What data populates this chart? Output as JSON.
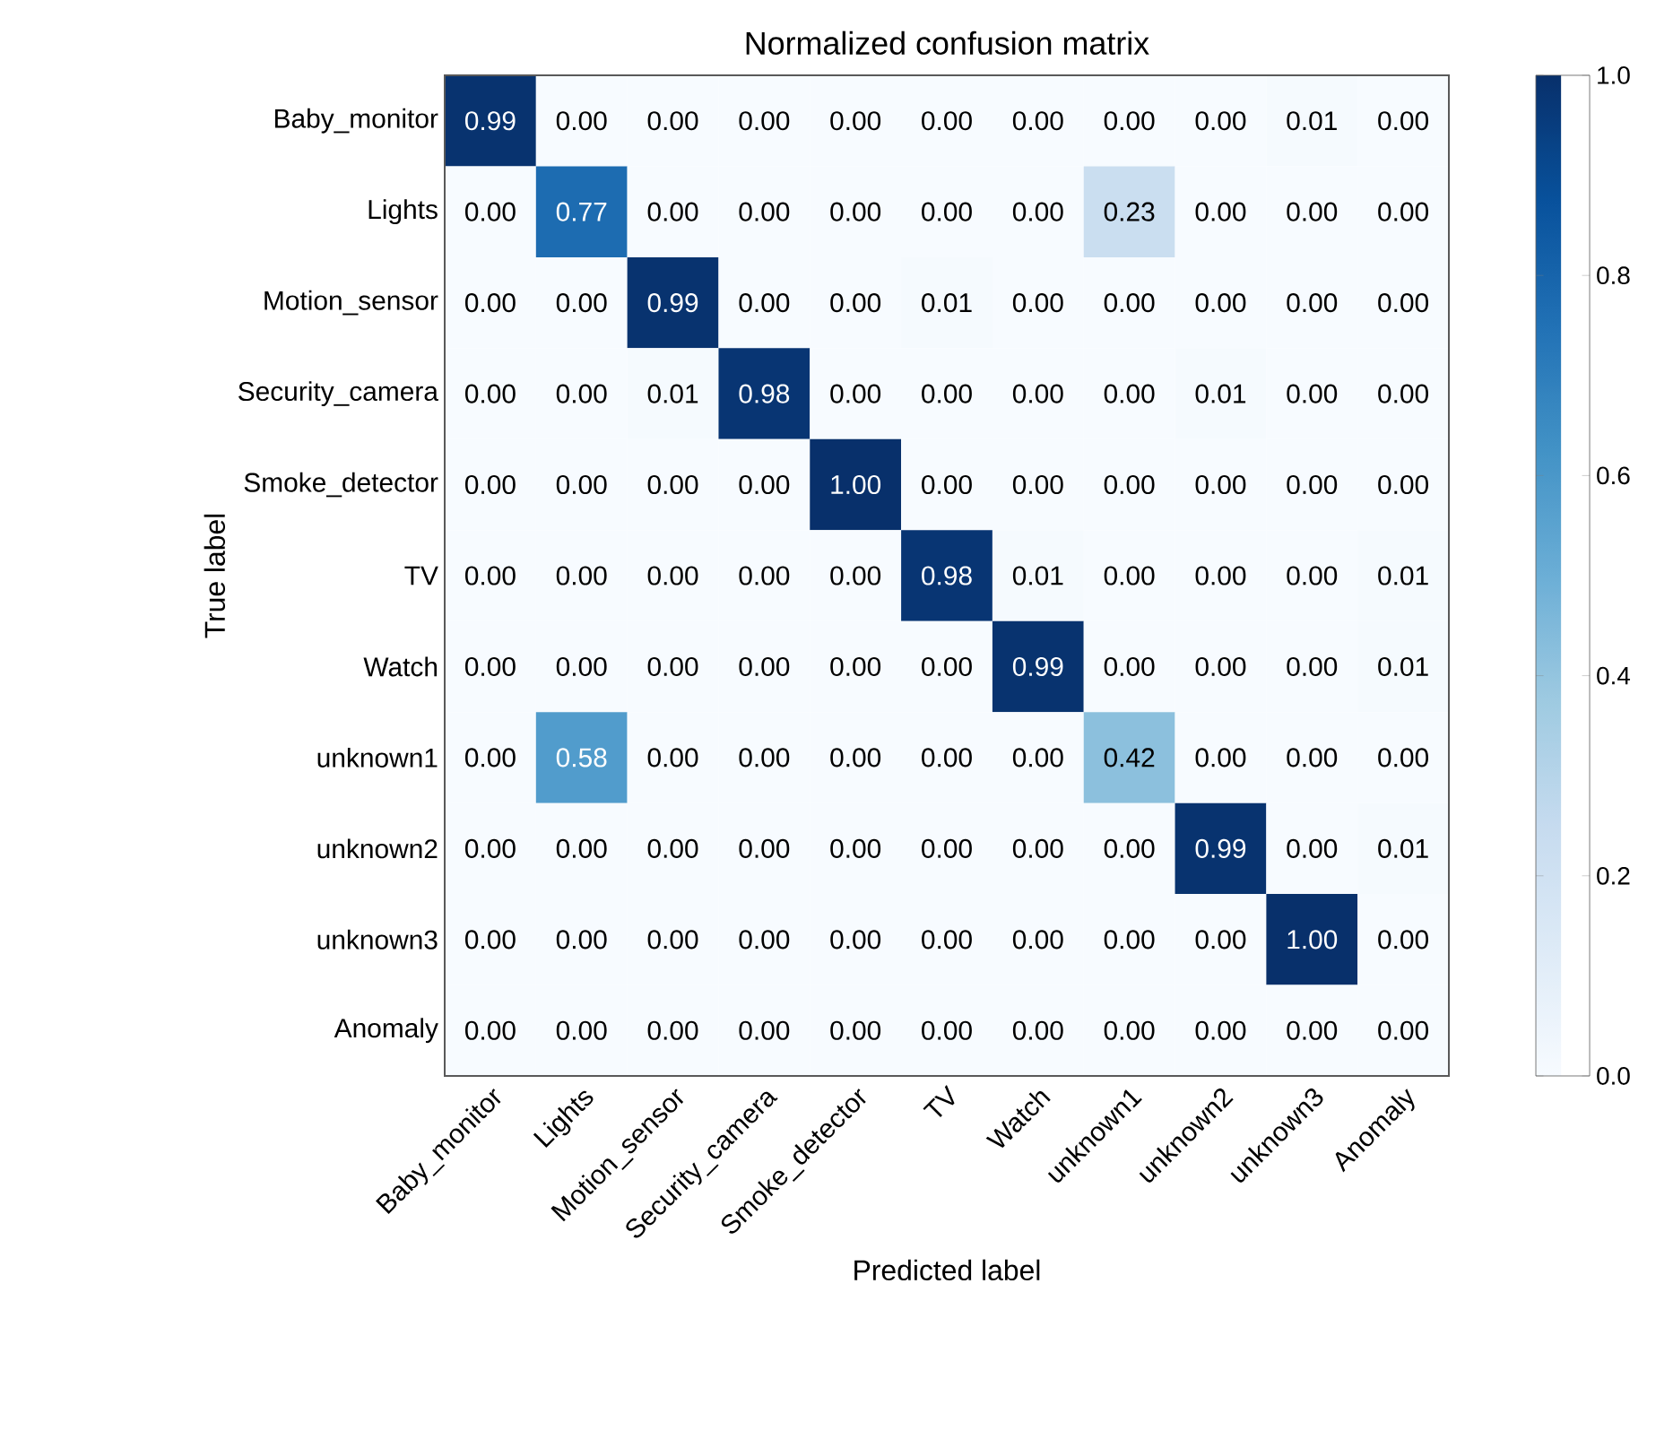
{
  "chart_data": {
    "type": "heatmap",
    "title": "Normalized confusion matrix",
    "xlabel": "Predicted label",
    "ylabel": "True label",
    "categories": [
      "Baby_monitor",
      "Lights",
      "Motion_sensor",
      "Security_camera",
      "Smoke_detector",
      "TV",
      "Watch",
      "unknown1",
      "unknown2",
      "unknown3",
      "Anomaly"
    ],
    "y_categories": [
      "Baby_monitor",
      "Lights",
      "Motion_sensor",
      "Security_camera",
      "Smoke_detector",
      "TV",
      "Watch",
      "unknown1",
      "unknown2",
      "unknown3",
      "Anomaly"
    ],
    "cells": [
      [
        0.99,
        0,
        0,
        0,
        0,
        0,
        0,
        0,
        0,
        0.01,
        0
      ],
      [
        0,
        0.77,
        0,
        0,
        0,
        0,
        0,
        0.23,
        0,
        0,
        0
      ],
      [
        0,
        0,
        0.99,
        0,
        0,
        0.01,
        0,
        0,
        0,
        0,
        0
      ],
      [
        0,
        0,
        0.01,
        0.98,
        0,
        0,
        0,
        0,
        0.01,
        0,
        0
      ],
      [
        0,
        0,
        0,
        0,
        1.0,
        0,
        0,
        0,
        0,
        0,
        0
      ],
      [
        0,
        0,
        0,
        0,
        0,
        0.98,
        0.01,
        0,
        0,
        0,
        0.01
      ],
      [
        0,
        0,
        0,
        0,
        0,
        0,
        0.99,
        0,
        0,
        0,
        0.01
      ],
      [
        0,
        0.58,
        0,
        0,
        0,
        0,
        0,
        0.42,
        0,
        0,
        0
      ],
      [
        0,
        0,
        0,
        0,
        0,
        0,
        0,
        0,
        0.99,
        0,
        0.01
      ],
      [
        0,
        0,
        0,
        0,
        0,
        0,
        0,
        0,
        0,
        1.0,
        0
      ],
      [
        0,
        0,
        0,
        0,
        0,
        0,
        0,
        0,
        0,
        0,
        0
      ]
    ],
    "cell_labels": [
      [
        "0.99",
        "0.00",
        "0.00",
        "0.00",
        "0.00",
        "0.00",
        "0.00",
        "0.00",
        "0.00",
        "0.01",
        "0.00"
      ],
      [
        "0.00",
        "0.77",
        "0.00",
        "0.00",
        "0.00",
        "0.00",
        "0.00",
        "0.23",
        "0.00",
        "0.00",
        "0.00"
      ],
      [
        "0.00",
        "0.00",
        "0.99",
        "0.00",
        "0.00",
        "0.01",
        "0.00",
        "0.00",
        "0.00",
        "0.00",
        "0.00"
      ],
      [
        "0.00",
        "0.00",
        "0.01",
        "0.98",
        "0.00",
        "0.00",
        "0.00",
        "0.00",
        "0.01",
        "0.00",
        "0.00"
      ],
      [
        "0.00",
        "0.00",
        "0.00",
        "0.00",
        "1.00",
        "0.00",
        "0.00",
        "0.00",
        "0.00",
        "0.00",
        "0.00"
      ],
      [
        "0.00",
        "0.00",
        "0.00",
        "0.00",
        "0.00",
        "0.98",
        "0.01",
        "0.00",
        "0.00",
        "0.00",
        "0.01"
      ],
      [
        "0.00",
        "0.00",
        "0.00",
        "0.00",
        "0.00",
        "0.00",
        "0.99",
        "0.00",
        "0.00",
        "0.00",
        "0.01"
      ],
      [
        "0.00",
        "0.58",
        "0.00",
        "0.00",
        "0.00",
        "0.00",
        "0.00",
        "0.42",
        "0.00",
        "0.00",
        "0.00"
      ],
      [
        "0.00",
        "0.00",
        "0.00",
        "0.00",
        "0.00",
        "0.00",
        "0.00",
        "0.00",
        "0.99",
        "0.00",
        "0.01"
      ],
      [
        "0.00",
        "0.00",
        "0.00",
        "0.00",
        "0.00",
        "0.00",
        "0.00",
        "0.00",
        "0.00",
        "1.00",
        "0.00"
      ],
      [
        "0.00",
        "0.00",
        "0.00",
        "0.00",
        "0.00",
        "0.00",
        "0.00",
        "0.00",
        "0.00",
        "0.00",
        "0.00"
      ]
    ],
    "clim": [
      0,
      1
    ],
    "cticks": [
      {
        "value": 0,
        "label": "0.0"
      },
      {
        "value": 0.2,
        "label": "0.2"
      },
      {
        "value": 0.4,
        "label": "0.4"
      },
      {
        "value": 0.6,
        "label": "0.6"
      },
      {
        "value": 0.8,
        "label": "0.8"
      },
      {
        "value": 1,
        "label": "1.0"
      }
    ]
  }
}
